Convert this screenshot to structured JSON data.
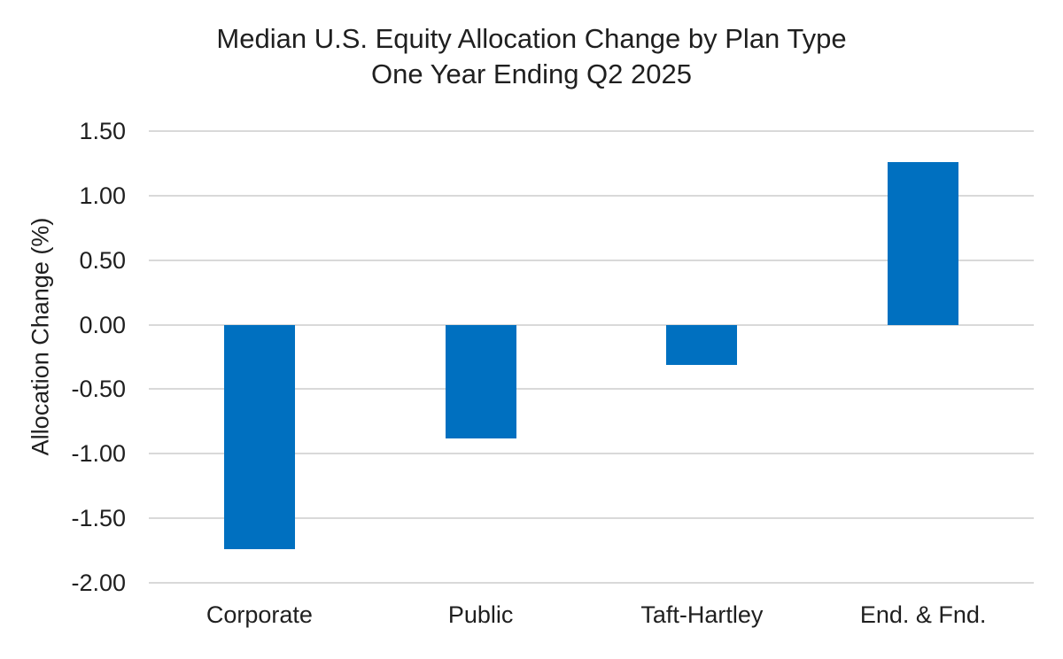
{
  "chart_data": {
    "type": "bar",
    "title": "Median U.S. Equity Allocation Change by Plan Type",
    "subtitle": "One Year Ending Q2 2025",
    "ylabel": "Allocation Change (%)",
    "xlabel": "",
    "categories": [
      "Corporate",
      "Public",
      "Taft-Hartley",
      "End. & Fnd."
    ],
    "values": [
      -1.74,
      -0.88,
      -0.31,
      1.26
    ],
    "ylim": [
      -2.0,
      1.5
    ],
    "yticks": [
      {
        "v": 1.5,
        "label": "1.50"
      },
      {
        "v": 1.0,
        "label": "1.00"
      },
      {
        "v": 0.5,
        "label": "0.50"
      },
      {
        "v": 0.0,
        "label": "0.00"
      },
      {
        "v": -0.5,
        "label": "-0.50"
      },
      {
        "v": -1.0,
        "label": "-1.00"
      },
      {
        "v": -1.5,
        "label": "-1.50"
      },
      {
        "v": -2.0,
        "label": "-2.00"
      }
    ],
    "grid": "horizontal",
    "legend": "none",
    "colors": {
      "bar": "#0070C0",
      "gridline": "#D9D9D9",
      "text": "#1F1F1F",
      "background": "#FFFFFF"
    }
  }
}
